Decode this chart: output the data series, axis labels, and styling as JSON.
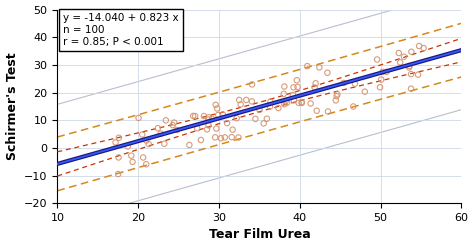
{
  "intercept": -14.04,
  "slope": 0.823,
  "xlabel": "Tear Film Urea",
  "ylabel": "Schirmer's Test",
  "xlim": [
    10,
    60
  ],
  "ylim": [
    -20,
    50
  ],
  "xticks": [
    10,
    20,
    30,
    40,
    50,
    60
  ],
  "yticks": [
    -20,
    -10,
    0,
    10,
    20,
    30,
    40,
    50
  ],
  "annotation": "y = -14.040 + 0.823 x\nn = 100\nr = 0.85; P < 0.001",
  "scatter_edge_color": "#d4916a",
  "regression_color1": "#1a1a7e",
  "regression_color2": "#3a5afe",
  "ci_color": "#cc3300",
  "pi_color": "#d4891a",
  "gray_line_color": "#b0b8c8",
  "grid_color": "#d0d8e8",
  "residual_std": 4.8,
  "x_min": 17,
  "x_max": 56,
  "seed": 7
}
